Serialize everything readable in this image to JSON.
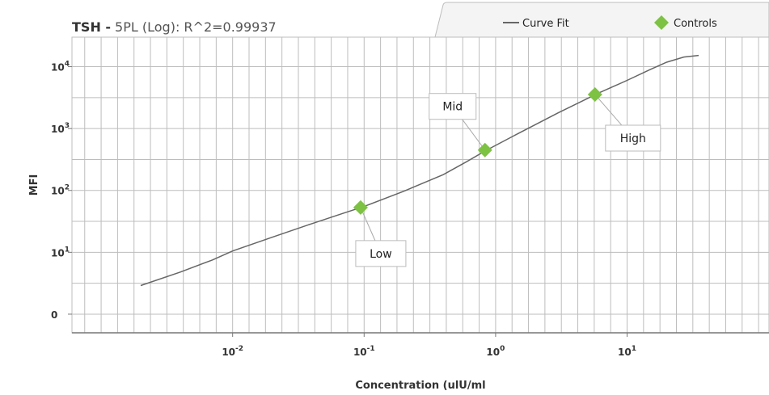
{
  "chart_data": {
    "type": "scatter",
    "title": {
      "analyte": "TSH -",
      "fit": "5PL (Log): R^2=0.99937"
    },
    "xlabel": "Concentration (ulU/ml",
    "ylabel": "MFI",
    "x_scale": "log",
    "y_scale": "log",
    "xlim": [
      0.0006,
      120
    ],
    "ylim": [
      0.5,
      30000
    ],
    "x_ticks": [
      {
        "value": 0.01,
        "base": "10",
        "exp": "-2"
      },
      {
        "value": 0.1,
        "base": "10",
        "exp": "-1"
      },
      {
        "value": 1,
        "base": "10",
        "exp": "0"
      },
      {
        "value": 10,
        "base": "10",
        "exp": "1"
      }
    ],
    "y_ticks": [
      {
        "value": 1,
        "base": "0",
        "exp": ""
      },
      {
        "value": 10,
        "base": "10",
        "exp": "1"
      },
      {
        "value": 100,
        "base": "10",
        "exp": "2"
      },
      {
        "value": 1000,
        "base": "10",
        "exp": "3"
      },
      {
        "value": 10000,
        "base": "10",
        "exp": "4"
      }
    ],
    "grid": true,
    "legend_position": "top-right",
    "legend": {
      "curve_label": "Curve Fit",
      "controls_label": "Controls"
    },
    "curve_color": "#666666",
    "control_color": "#7dc242",
    "series": [
      {
        "name": "Curve Fit",
        "kind": "line",
        "points": [
          [
            0.002,
            2.9
          ],
          [
            0.004,
            4.8
          ],
          [
            0.007,
            7.5
          ],
          [
            0.01,
            10.5
          ],
          [
            0.02,
            17.5
          ],
          [
            0.04,
            29
          ],
          [
            0.07,
            43
          ],
          [
            0.1,
            55
          ],
          [
            0.2,
            97
          ],
          [
            0.4,
            180
          ],
          [
            0.6,
            290
          ],
          [
            0.84,
            440
          ],
          [
            1.5,
            840
          ],
          [
            3,
            1800
          ],
          [
            6,
            3700
          ],
          [
            10,
            6000
          ],
          [
            15,
            9000
          ],
          [
            20,
            11800
          ],
          [
            27,
            14300
          ],
          [
            35,
            15200
          ]
        ]
      },
      {
        "name": "Controls",
        "kind": "scatter",
        "points": [
          {
            "x": 0.094,
            "y": 53,
            "label": "Low"
          },
          {
            "x": 0.83,
            "y": 450,
            "label": "Mid"
          },
          {
            "x": 5.7,
            "y": 3550,
            "label": "High"
          }
        ]
      }
    ]
  }
}
